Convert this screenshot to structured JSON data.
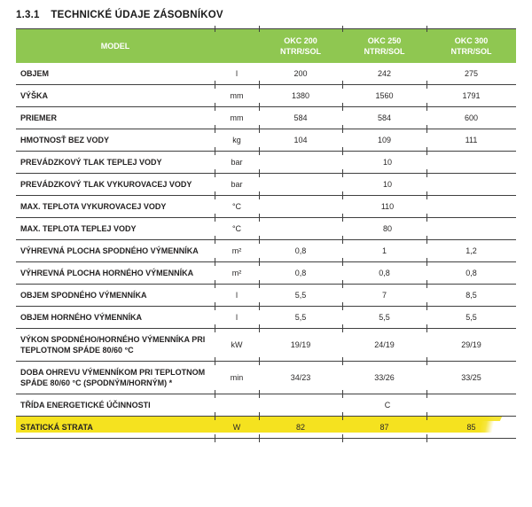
{
  "page": {
    "section_number": "1.3.1",
    "section_title": "TECHNICKÉ ÚDAJE ZÁSOBNÍKOV"
  },
  "table": {
    "header": {
      "model_label": "MODEL",
      "columns": [
        "OKC 200\nNTRR/SOL",
        "OKC 250\nNTRR/SOL",
        "OKC 300\nNTRR/SOL"
      ]
    },
    "rows": [
      {
        "label": "OBJEM",
        "unit": "l",
        "values": [
          "200",
          "242",
          "275"
        ]
      },
      {
        "label": "VÝŠKA",
        "unit": "mm",
        "values": [
          "1380",
          "1560",
          "1791"
        ]
      },
      {
        "label": "PRIEMER",
        "unit": "mm",
        "values": [
          "584",
          "584",
          "600"
        ]
      },
      {
        "label": "HMOTNOSŤ BEZ VODY",
        "unit": "kg",
        "values": [
          "104",
          "109",
          "111"
        ]
      },
      {
        "label": "PREVÁDZKOVÝ TLAK TEPLEJ VODY",
        "unit": "bar",
        "span_value": "10"
      },
      {
        "label": "PREVÁDZKOVÝ TLAK VYKUROVACEJ VODY",
        "unit": "bar",
        "span_value": "10"
      },
      {
        "label": "MAX. TEPLOTA VYKUROVACEJ VODY",
        "unit": "°C",
        "span_value": "110"
      },
      {
        "label": "MAX. TEPLOTA TEPLEJ VODY",
        "unit": "°C",
        "span_value": "80"
      },
      {
        "label": "VÝHREVNÁ PLOCHA SPODNÉHO VÝMENNÍKA",
        "unit": "m²",
        "values": [
          "0,8",
          "1",
          "1,2"
        ]
      },
      {
        "label": "VÝHREVNÁ PLOCHA HORNÉHO VÝMENNÍKA",
        "unit": "m²",
        "values": [
          "0,8",
          "0,8",
          "0,8"
        ]
      },
      {
        "label": "OBJEM SPODNÉHO VÝMENNÍKA",
        "unit": "l",
        "values": [
          "5,5",
          "7",
          "8,5"
        ]
      },
      {
        "label": "OBJEM HORNÉHO VÝMENNÍKA",
        "unit": "l",
        "values": [
          "5,5",
          "5,5",
          "5,5"
        ]
      },
      {
        "label": "VÝKON SPODNÉHO/HORNÉHO VÝMENNÍKA PRI TEPLOTNOM SPÁDE 80/60 °C",
        "unit": "kW",
        "values": [
          "19/19",
          "24/19",
          "29/19"
        ]
      },
      {
        "label": "DOBA OHREVU VÝMENNÍKOM PRI TEPLOTNOM SPÁDE 80/60 °C (SPODNÝM/HORNÝM) *",
        "unit": "min",
        "values": [
          "34/23",
          "33/26",
          "33/25"
        ]
      },
      {
        "label": "TŘÍDA ENERGETICKÉ ÚČINNOSTI",
        "unit": "",
        "span_value": "C"
      },
      {
        "label": "STATICKÁ STRATA",
        "unit": "W",
        "values": [
          "82",
          "87",
          "85"
        ],
        "highlight": true
      }
    ],
    "colors": {
      "header_green": "#8fc751",
      "highlight_yellow": "#f5e21f",
      "rule_line": "#404040",
      "header_text": "#ffffff",
      "body_text": "#1f1d1d"
    }
  }
}
